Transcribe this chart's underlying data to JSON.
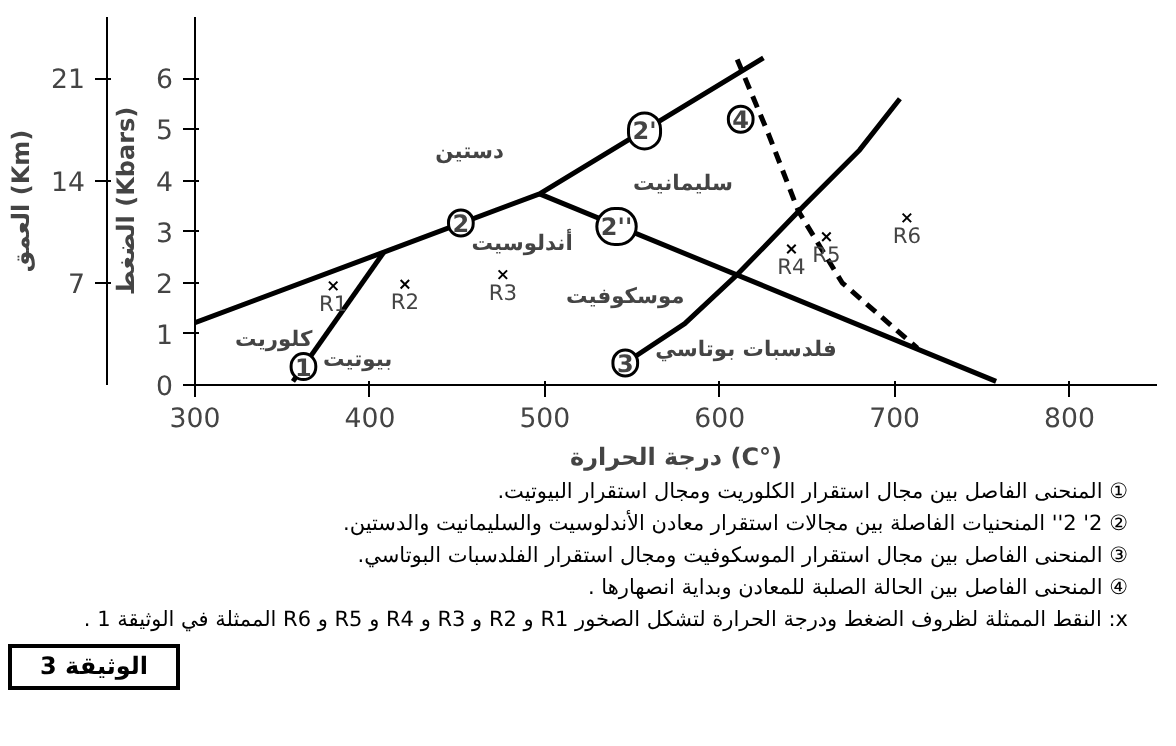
{
  "chart_data": {
    "type": "line",
    "title": "الوثيقة 3",
    "xlabel": "درجة الحرارة (C°)",
    "ylabel": "الضغط (Kbars)",
    "y2label": "العمق (Km)",
    "xlim": [
      300,
      850
    ],
    "xticks": [
      300,
      400,
      500,
      600,
      700,
      800
    ],
    "ylim": [
      0,
      7.2
    ],
    "yticks": [
      0,
      1,
      2,
      3,
      4,
      5,
      6
    ],
    "y2lim": [
      0,
      25.2
    ],
    "y2ticks": [
      7,
      14,
      21
    ],
    "grid": false,
    "series": [
      {
        "color": "#000000",
        "line_style": "solid",
        "x": [
          300,
          408,
          497,
          625
        ],
        "values": [
          1.22,
          2.6,
          3.74,
          6.4
        ]
      },
      {
        "color": "#000000",
        "line_style": "solid",
        "x": [
          497,
          758
        ],
        "values": [
          3.74,
          0.07
        ]
      },
      {
        "color": "#000000",
        "line_style": "solid",
        "x": [
          356,
          408
        ],
        "values": [
          0.07,
          2.6
        ]
      },
      {
        "color": "#000000",
        "line_style": "solid",
        "x": [
          546,
          580,
          610,
          648,
          680,
          703
        ],
        "values": [
          0.43,
          1.2,
          2.16,
          3.5,
          4.6,
          5.6
        ]
      },
      {
        "color": "#000000",
        "line_style": "dashed",
        "x": [
          610,
          628,
          645,
          670,
          713
        ],
        "values": [
          6.37,
          4.9,
          3.4,
          2.0,
          0.72
        ]
      },
      {
        "type": "scatter",
        "color": "#000000",
        "marker": "cross",
        "x": [
          379,
          420,
          476,
          641,
          661,
          707
        ],
        "values": [
          1.94,
          1.97,
          2.16,
          2.66,
          2.9,
          3.27
        ]
      }
    ],
    "annotations": [
      {
        "text": "R1",
        "x": 379,
        "y": 1.94
      },
      {
        "text": "R2",
        "x": 420,
        "y": 1.97
      },
      {
        "text": "R3",
        "x": 476,
        "y": 2.16
      },
      {
        "text": "R4",
        "x": 641,
        "y": 2.66
      },
      {
        "text": "R5",
        "x": 661,
        "y": 2.9
      },
      {
        "text": "R6",
        "x": 707,
        "y": 3.27
      },
      {
        "text": "1",
        "x": 362,
        "y": 0.36
      },
      {
        "text": "2",
        "x": 452,
        "y": 3.17
      },
      {
        "text": "2'",
        "x": 557,
        "y": 4.97
      },
      {
        "text": "2''",
        "x": 541,
        "y": 3.1
      },
      {
        "text": "3",
        "x": 546,
        "y": 0.43
      },
      {
        "text": "4",
        "x": 612,
        "y": 5.2
      },
      "دستين",
      "سليمانيت",
      "أندلوسيت",
      "كلوريت",
      "بيوتيت",
      "موسكوفيت",
      "فلدسبات بوتاسي",
      "① المنحنى الفاصل بين مجال استقرار الكلوريت ومجال استقرار البيوتيت.",
      "② 2' 2'' المنحنيات الفاصلة بين مجالات استقرار معادن الأندلوسيت والسليمانيت والدستين.",
      "③ المنحنى الفاصل بين مجال استقرار الموسكوفيت ومجال استقرار الفلدسبات البوتاسي.",
      "④ المنحنى الفاصل بين الحالة الصلبة للمعادن وبداية انصهارها .",
      "x: النقط الممثلة لظروف الضغط ودرجة الحرارة لتشكل الصخور R1 و R2 و R3 و R4 و R5 و R6 الممثلة في الوثيقة 1 ."
    ]
  }
}
